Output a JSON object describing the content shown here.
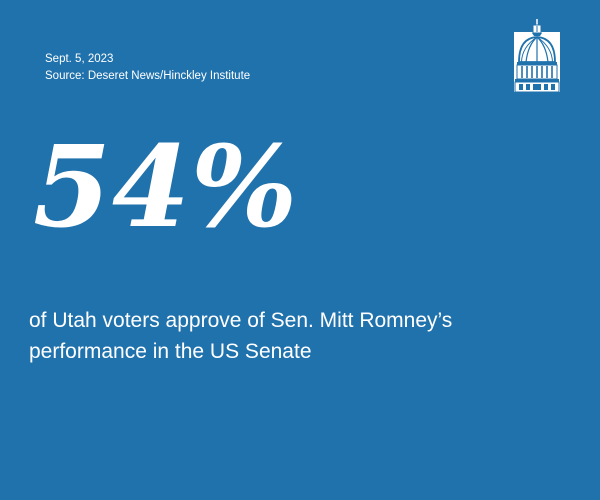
{
  "header": {
    "date": "Sept. 5, 2023",
    "source": "Source: Deseret News/Hinckley Institute"
  },
  "logo": {
    "icon": "capitol-dome-icon"
  },
  "stat": {
    "value": "54%",
    "description": "of Utah voters approve of Sen. Mitt Romney’s performance in the US Senate"
  },
  "colors": {
    "background": "#2072ad",
    "text": "#ffffff"
  }
}
